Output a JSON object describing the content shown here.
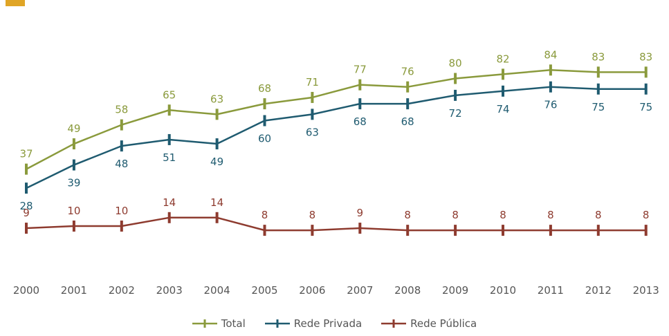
{
  "chart_data": {
    "type": "line",
    "title": "",
    "xlabel": "",
    "ylabel": "",
    "x": [
      "2000",
      "2001",
      "2002",
      "2003",
      "2004",
      "2005",
      "2006",
      "2007",
      "2008",
      "2009",
      "2010",
      "2011",
      "2012",
      "2013"
    ],
    "series": [
      {
        "name": "Total",
        "color": "#8a9a3c",
        "values": [
          37,
          49,
          58,
          65,
          63,
          68,
          71,
          77,
          76,
          80,
          82,
          84,
          83,
          83
        ]
      },
      {
        "name": "Rede Privada",
        "color": "#1f5b70",
        "values": [
          28,
          39,
          48,
          51,
          49,
          60,
          63,
          68,
          68,
          72,
          74,
          76,
          75,
          75
        ]
      },
      {
        "name": "Rede Pública",
        "color": "#8e3b2f",
        "values": [
          9,
          10,
          10,
          14,
          14,
          8,
          8,
          9,
          8,
          8,
          8,
          8,
          8,
          8
        ]
      }
    ],
    "grid": false,
    "legend": "bottom"
  }
}
